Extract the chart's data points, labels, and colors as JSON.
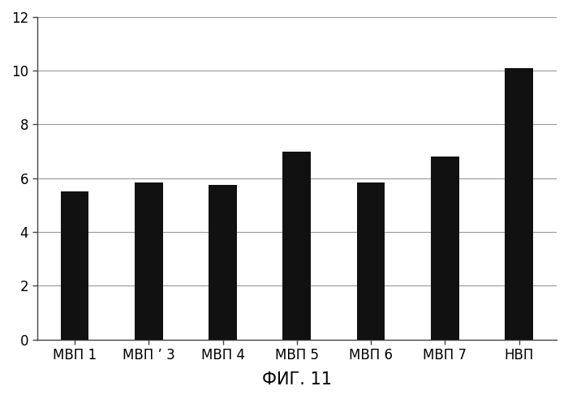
{
  "categories": [
    "МВП 1",
    "МВП ʼ 3",
    "МВП 4",
    "МВП 5",
    "МВП 6",
    "МВП 7",
    "НВП"
  ],
  "values": [
    5.5,
    5.85,
    5.75,
    7.0,
    5.85,
    6.8,
    10.1
  ],
  "bar_color": "#111111",
  "xlabel": "ФИГ. 11",
  "ylim": [
    0,
    12
  ],
  "yticks": [
    0,
    2,
    4,
    6,
    8,
    10,
    12
  ],
  "background_color": "#ffffff",
  "bar_width": 0.38,
  "grid_color": "#999999",
  "xlabel_fontsize": 15,
  "tick_fontsize": 12
}
